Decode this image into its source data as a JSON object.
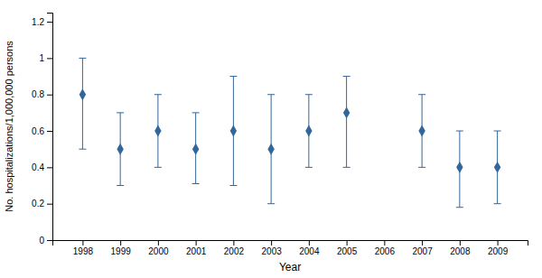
{
  "chart_data": {
    "type": "scatter",
    "x": [
      1998,
      1999,
      2000,
      2001,
      2002,
      2003,
      2004,
      2005,
      2006,
      2007,
      2008,
      2009
    ],
    "values": [
      0.8,
      0.5,
      0.6,
      0.5,
      0.6,
      0.5,
      0.6,
      0.7,
      null,
      0.6,
      0.4,
      0.4
    ],
    "ci_lower": [
      0.5,
      0.3,
      0.4,
      0.31,
      0.3,
      0.2,
      0.4,
      0.4,
      null,
      0.4,
      0.18,
      0.2
    ],
    "ci_upper": [
      1.0,
      0.7,
      0.8,
      0.7,
      0.9,
      0.8,
      0.8,
      0.9,
      null,
      0.8,
      0.6,
      0.6
    ],
    "xlabel": "Year",
    "ylabel": "No. hospitalizations/1,000,000 persons",
    "xlim": [
      1997.2,
      2009.8
    ],
    "ylim": [
      0,
      1.25
    ],
    "xticks": [
      1998,
      1999,
      2000,
      2001,
      2002,
      2003,
      2004,
      2005,
      2006,
      2007,
      2008,
      2009
    ],
    "yticks": [
      0,
      0.2,
      0.4,
      0.6,
      0.8,
      1,
      1.2
    ],
    "color": "#336699",
    "marker": "diamond",
    "grid": false
  }
}
